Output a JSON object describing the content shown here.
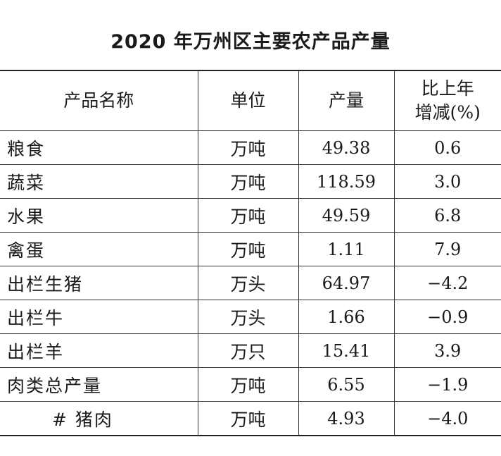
{
  "title": "2020 年万州区主要农产品产量",
  "headers": {
    "name": "产品名称",
    "unit": "单位",
    "output": "产量",
    "change_line1": "比上年",
    "change_line2": "增减(%)"
  },
  "rows": [
    {
      "name": "粮食",
      "unit": "万吨",
      "output": "49.38",
      "change": "0.6"
    },
    {
      "name": "蔬菜",
      "unit": "万吨",
      "output": "118.59",
      "change": "3.0"
    },
    {
      "name": "水果",
      "unit": "万吨",
      "output": "49.59",
      "change": "6.8"
    },
    {
      "name": "禽蛋",
      "unit": "万吨",
      "output": "1.11",
      "change": "7.9"
    },
    {
      "name": "出栏生猪",
      "unit": "万头",
      "output": "64.97",
      "change": "−4.2"
    },
    {
      "name": "出栏牛",
      "unit": "万头",
      "output": "1.66",
      "change": "−0.9"
    },
    {
      "name": "出栏羊",
      "unit": "万只",
      "output": "15.41",
      "change": "3.9"
    },
    {
      "name": "肉类总产量",
      "unit": "万吨",
      "output": "6.55",
      "change": "−1.9"
    },
    {
      "name": "# 猪肉",
      "unit": "万吨",
      "output": "4.93",
      "change": "−4.0"
    }
  ]
}
